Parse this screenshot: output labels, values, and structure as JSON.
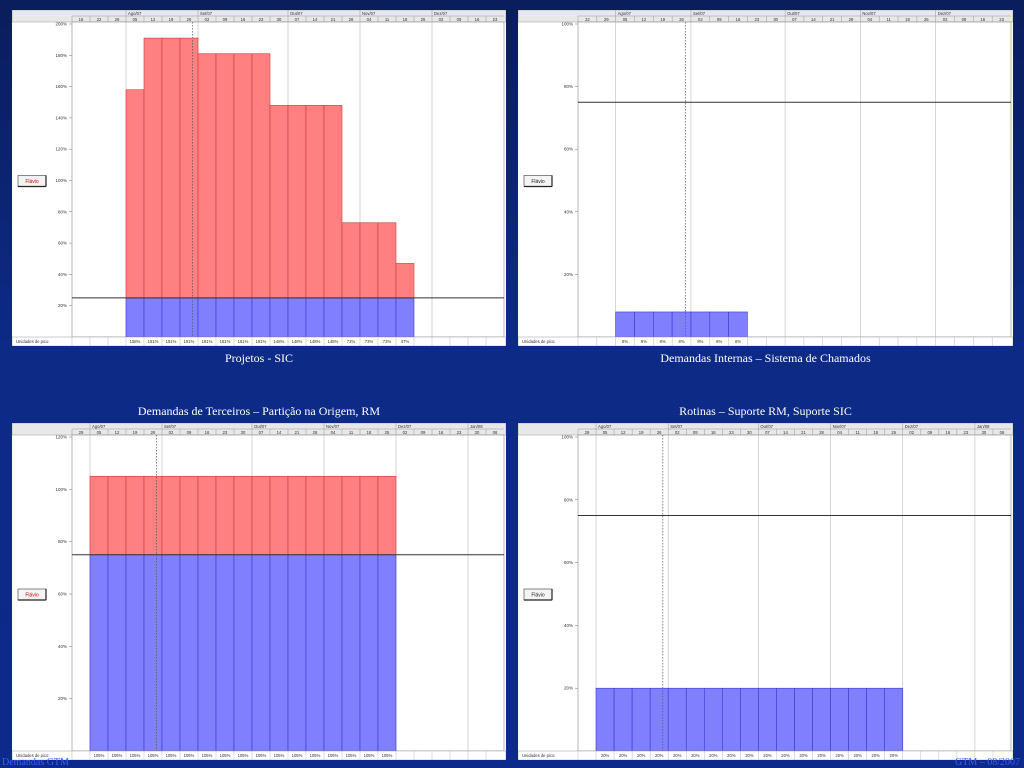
{
  "slide": {
    "footer_left": "Demandas GTM",
    "footer_right": "GTM – 08/2007"
  },
  "colors": {
    "background": "#0b2a8a",
    "overalloc": "#ff8080",
    "alloc": "#8080ff",
    "caption": "#ffffff"
  },
  "chart_data": [
    {
      "type": "bar",
      "stacked": true,
      "title": "Projetos - SIC",
      "legend_button": "Flávio",
      "legend_red": true,
      "row_label": "Unidades de pico:",
      "months": [
        {
          "label": "Ago/07",
          "start": 3
        },
        {
          "label": "Set/07",
          "start": 7
        },
        {
          "label": "Out/07",
          "start": 12
        },
        {
          "label": "Nov/07",
          "start": 16
        },
        {
          "label": "Dez/07",
          "start": 20
        }
      ],
      "weeks": [
        "15",
        "22",
        "29",
        "05",
        "12",
        "19",
        "26",
        "02",
        "09",
        "16",
        "23",
        "30",
        "07",
        "14",
        "21",
        "28",
        "04",
        "11",
        "18",
        "25",
        "02",
        "09",
        "16",
        "23"
      ],
      "ylim": [
        0,
        200
      ],
      "yticks": [
        20,
        40,
        60,
        80,
        100,
        120,
        140,
        160,
        180,
        200
      ],
      "ytick_suffix": "%",
      "limit_line": 25,
      "today_week": 6.7,
      "bar_start": 3,
      "values": [
        158,
        191,
        191,
        191,
        181,
        181,
        181,
        181,
        148,
        148,
        148,
        148,
        73,
        73,
        73,
        47
      ],
      "labels": [
        "158%",
        "191%",
        "191%",
        "191%",
        "181%",
        "181%",
        "181%",
        "181%",
        "148%",
        "148%",
        "148%",
        "148%",
        "73%",
        "73%",
        "73%",
        "47%"
      ]
    },
    {
      "type": "bar",
      "stacked": true,
      "title": "Demandas Internas – Sistema de Chamados",
      "legend_button": "Flávio",
      "legend_red": false,
      "row_label": "Unidades de pico:",
      "months": [
        {
          "label": "Ago/07",
          "start": 2
        },
        {
          "label": "Set/07",
          "start": 6
        },
        {
          "label": "Out/07",
          "start": 11
        },
        {
          "label": "Nov/07",
          "start": 15
        },
        {
          "label": "Dez/07",
          "start": 19
        }
      ],
      "weeks": [
        "22",
        "29",
        "05",
        "12",
        "19",
        "26",
        "02",
        "09",
        "16",
        "23",
        "30",
        "07",
        "14",
        "21",
        "28",
        "04",
        "11",
        "18",
        "25",
        "02",
        "09",
        "16",
        "23"
      ],
      "ylim": [
        0,
        100
      ],
      "yticks": [
        20,
        40,
        60,
        80,
        100
      ],
      "ytick_suffix": "%",
      "limit_line": 75,
      "today_week": 5.7,
      "bar_start": 2,
      "values": [
        8,
        8,
        8,
        8,
        8,
        8,
        8
      ],
      "labels": [
        "8%",
        "8%",
        "8%",
        "8%",
        "8%",
        "8%",
        "8%"
      ]
    },
    {
      "type": "bar",
      "stacked": true,
      "title": "Demandas de Terceiros – Partição na Origem, RM",
      "legend_button": "Flávio",
      "legend_red": true,
      "row_label": "Unidades de pico:",
      "months": [
        {
          "label": "Ago/07",
          "start": 1
        },
        {
          "label": "Set/07",
          "start": 5
        },
        {
          "label": "Out/07",
          "start": 10
        },
        {
          "label": "Nov/07",
          "start": 14
        },
        {
          "label": "Dez/07",
          "start": 18
        },
        {
          "label": "Jan/08",
          "start": 22
        }
      ],
      "weeks": [
        "29",
        "05",
        "12",
        "19",
        "26",
        "02",
        "09",
        "16",
        "23",
        "30",
        "07",
        "14",
        "21",
        "28",
        "04",
        "11",
        "18",
        "25",
        "02",
        "09",
        "16",
        "23",
        "30",
        "06"
      ],
      "ylim": [
        0,
        120
      ],
      "yticks": [
        20,
        40,
        60,
        80,
        100,
        120
      ],
      "ytick_suffix": "%",
      "limit_line": 75,
      "today_week": 4.7,
      "bar_start": 1,
      "values": [
        105,
        105,
        105,
        105,
        105,
        105,
        105,
        105,
        105,
        105,
        105,
        105,
        105,
        105,
        105,
        105,
        105
      ],
      "labels": [
        "105%",
        "105%",
        "105%",
        "105%",
        "105%",
        "105%",
        "105%",
        "105%",
        "105%",
        "105%",
        "105%",
        "105%",
        "105%",
        "105%",
        "105%",
        "105%",
        "105%"
      ]
    },
    {
      "type": "bar",
      "stacked": true,
      "title": "Rotinas – Suporte RM, Suporte SIC",
      "legend_button": "Flávio",
      "legend_red": false,
      "row_label": "Unidades de pico:",
      "months": [
        {
          "label": "Ago/07",
          "start": 1
        },
        {
          "label": "Set/07",
          "start": 5
        },
        {
          "label": "Out/07",
          "start": 10
        },
        {
          "label": "Nov/07",
          "start": 14
        },
        {
          "label": "Dez/07",
          "start": 18
        },
        {
          "label": "Jan/08",
          "start": 22
        }
      ],
      "weeks": [
        "29",
        "05",
        "12",
        "19",
        "26",
        "02",
        "09",
        "16",
        "23",
        "30",
        "07",
        "14",
        "21",
        "28",
        "04",
        "11",
        "18",
        "25",
        "02",
        "09",
        "16",
        "23",
        "30",
        "06"
      ],
      "ylim": [
        0,
        100
      ],
      "yticks": [
        20,
        40,
        60,
        80,
        100
      ],
      "ytick_suffix": "%",
      "limit_line": 75,
      "today_week": 4.7,
      "bar_start": 1,
      "values": [
        20,
        20,
        20,
        20,
        20,
        20,
        20,
        20,
        20,
        20,
        20,
        20,
        20,
        20,
        20,
        20,
        20
      ],
      "labels": [
        "20%",
        "20%",
        "20%",
        "20%",
        "20%",
        "20%",
        "20%",
        "20%",
        "20%",
        "20%",
        "20%",
        "20%",
        "20%",
        "20%",
        "20%",
        "20%",
        "20%"
      ]
    }
  ]
}
